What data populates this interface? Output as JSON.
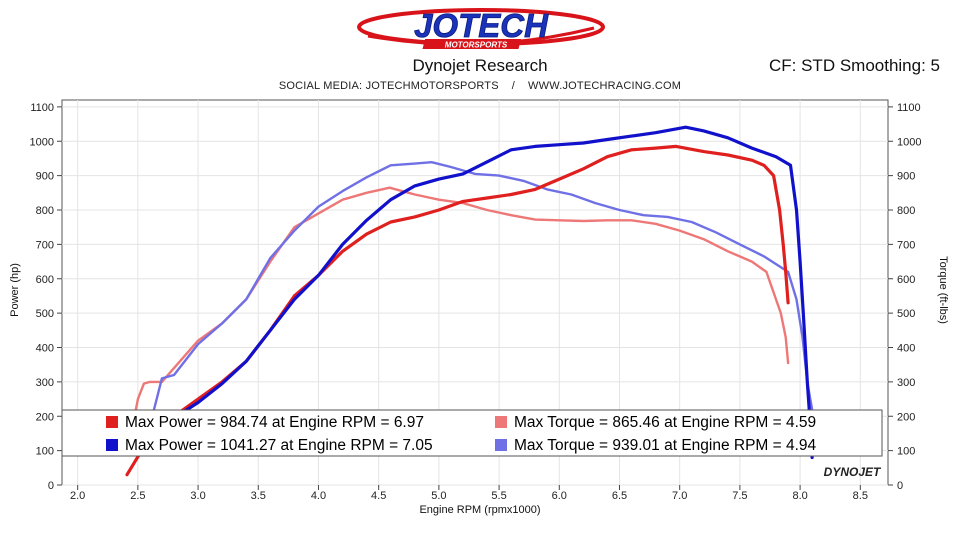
{
  "header": {
    "logo_text": "JOTECH",
    "logo_subtext": "MOTORSPORTS",
    "title": "Dynojet Research",
    "cf_label": "CF: STD Smoothing: 5",
    "social": "SOCIAL MEDIA: JOTECHMOTORSPORTS    /    WWW.JOTECHRACING.COM"
  },
  "watermark": "DYNOJET",
  "colors": {
    "power_run1": "#e01f1f",
    "power_run2": "#1111cc",
    "torque_run1": "#ee7777",
    "torque_run2": "#7070e6",
    "plot_bg": "#ffffff"
  },
  "chart_data": {
    "type": "line",
    "xlabel": "Engine RPM (rpmx1000)",
    "ylabel_left": "Power (hp)",
    "ylabel_right": "Torque (ft-lbs)",
    "xlim": [
      1.87,
      8.73
    ],
    "ylim": [
      0,
      1120
    ],
    "x_ticks": [
      "2.0",
      "2.5",
      "3.0",
      "3.5",
      "4.0",
      "4.5",
      "5.0",
      "5.5",
      "6.0",
      "6.5",
      "7.0",
      "7.5",
      "8.0",
      "8.5"
    ],
    "x_tick_values": [
      2.0,
      2.5,
      3.0,
      3.5,
      4.0,
      4.5,
      5.0,
      5.5,
      6.0,
      6.5,
      7.0,
      7.5,
      8.0,
      8.5
    ],
    "y_ticks": [
      "0",
      "100",
      "200",
      "300",
      "400",
      "500",
      "600",
      "700",
      "800",
      "900",
      "1000",
      "1100"
    ],
    "y_tick_values": [
      0,
      100,
      200,
      300,
      400,
      500,
      600,
      700,
      800,
      900,
      1000,
      1100
    ],
    "grid": true,
    "legend_position": "bottom-inside",
    "legend": [
      {
        "text": "Max Power = 984.74 at Engine RPM = 6.97",
        "color": "#e01f1f"
      },
      {
        "text": "Max Torque = 865.46 at Engine RPM = 4.59",
        "color": "#ee7777"
      },
      {
        "text": "Max Power = 1041.27 at Engine RPM = 7.05",
        "color": "#1111cc"
      },
      {
        "text": "Max Torque = 939.01 at Engine RPM = 4.94",
        "color": "#7070e6"
      }
    ],
    "series": [
      {
        "color": "#e01f1f",
        "width": 3.2,
        "x": [
          2.41,
          2.6,
          2.8,
          3.0,
          3.2,
          3.4,
          3.6,
          3.8,
          4.0,
          4.2,
          4.4,
          4.6,
          4.8,
          5.0,
          5.2,
          5.4,
          5.6,
          5.8,
          6.0,
          6.2,
          6.4,
          6.6,
          6.8,
          6.97,
          7.2,
          7.4,
          7.6,
          7.7,
          7.78,
          7.83,
          7.86,
          7.88,
          7.9
        ],
        "y": [
          30,
          140,
          200,
          250,
          300,
          360,
          450,
          550,
          610,
          680,
          730,
          765,
          780,
          800,
          825,
          835,
          845,
          860,
          890,
          920,
          955,
          975,
          980,
          985,
          970,
          960,
          945,
          930,
          900,
          800,
          700,
          620,
          530
        ]
      },
      {
        "color": "#1111cc",
        "width": 3.2,
        "x": [
          2.62,
          2.8,
          3.0,
          3.2,
          3.4,
          3.6,
          3.8,
          4.0,
          4.2,
          4.4,
          4.6,
          4.8,
          5.0,
          5.2,
          5.4,
          5.6,
          5.8,
          6.0,
          6.2,
          6.4,
          6.6,
          6.8,
          7.05,
          7.2,
          7.4,
          7.6,
          7.8,
          7.92,
          7.97,
          8.0,
          8.03,
          8.06,
          8.08,
          8.1
        ],
        "y": [
          150,
          195,
          240,
          295,
          360,
          450,
          540,
          610,
          700,
          770,
          830,
          870,
          890,
          905,
          940,
          975,
          985,
          990,
          995,
          1005,
          1015,
          1025,
          1041,
          1030,
          1010,
          980,
          955,
          930,
          800,
          650,
          480,
          300,
          200,
          80
        ]
      },
      {
        "color": "#ee7777",
        "width": 2.4,
        "x": [
          2.45,
          2.5,
          2.55,
          2.6,
          2.7,
          2.8,
          3.0,
          3.2,
          3.4,
          3.6,
          3.8,
          4.0,
          4.2,
          4.4,
          4.59,
          4.8,
          5.0,
          5.2,
          5.4,
          5.6,
          5.8,
          6.0,
          6.2,
          6.4,
          6.6,
          6.8,
          7.0,
          7.2,
          7.4,
          7.6,
          7.72,
          7.78,
          7.84,
          7.88,
          7.9
        ],
        "y": [
          160,
          250,
          295,
          300,
          300,
          340,
          420,
          470,
          540,
          650,
          750,
          790,
          830,
          850,
          865,
          845,
          830,
          820,
          800,
          785,
          772,
          770,
          768,
          770,
          770,
          760,
          740,
          715,
          680,
          650,
          620,
          560,
          500,
          430,
          355
        ]
      },
      {
        "color": "#7070e6",
        "width": 2.4,
        "x": [
          2.62,
          2.7,
          2.8,
          3.0,
          3.2,
          3.4,
          3.6,
          3.8,
          4.0,
          4.2,
          4.4,
          4.6,
          4.8,
          4.94,
          5.1,
          5.3,
          5.5,
          5.7,
          5.9,
          6.1,
          6.3,
          6.5,
          6.7,
          6.9,
          7.1,
          7.3,
          7.5,
          7.7,
          7.9,
          7.97,
          8.02,
          8.06,
          8.1
        ],
        "y": [
          200,
          310,
          320,
          410,
          470,
          540,
          660,
          740,
          810,
          855,
          895,
          930,
          935,
          939,
          925,
          905,
          900,
          885,
          860,
          845,
          820,
          800,
          785,
          780,
          765,
          735,
          700,
          665,
          620,
          540,
          430,
          300,
          220
        ]
      }
    ]
  }
}
